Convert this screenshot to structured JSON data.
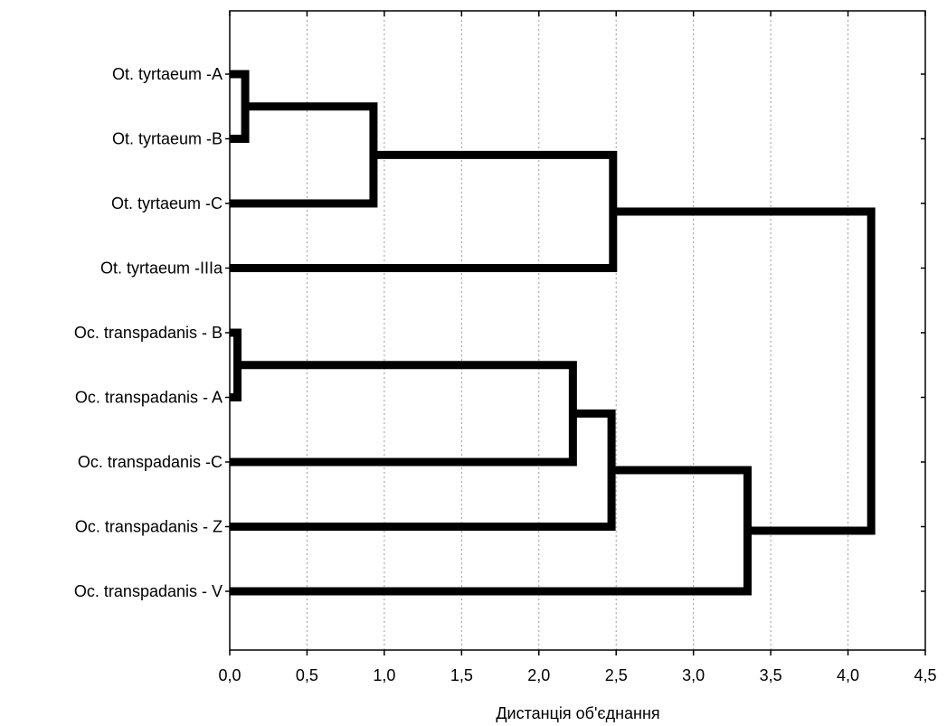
{
  "chart_data": {
    "type": "dendrogram",
    "orientation": "horizontal",
    "leaves": [
      "Ot. tyrtaeum -A",
      "Ot. tyrtaeum -B",
      "Ot. tyrtaeum -C",
      "Ot. tyrtaeum -IIIa",
      "Oc. transpadanis - B",
      "Oc. transpadanis - A",
      "Oc. transpadanis -C",
      "Oc. transpadanis - Z",
      "Oc. transpadanis - V"
    ],
    "merges": [
      {
        "left": "L0",
        "right": "L1",
        "height": 0.1
      },
      {
        "left": "L4",
        "right": "L5",
        "height": 0.05
      },
      {
        "left": "M0",
        "right": "L2",
        "height": 0.93
      },
      {
        "left": "M2",
        "right": "L3",
        "height": 2.48
      },
      {
        "left": "M1",
        "right": "L6",
        "height": 2.22
      },
      {
        "left": "M4",
        "right": "L7",
        "height": 2.47
      },
      {
        "left": "M5",
        "right": "L8",
        "height": 3.35
      },
      {
        "left": "M3",
        "right": "M6",
        "height": 4.15
      }
    ],
    "xlabel": "Дистанція об'єднання",
    "xlim": [
      0,
      4.5
    ],
    "xticks": [
      0,
      0.5,
      1,
      1.5,
      2,
      2.5,
      3,
      3.5,
      4,
      4.5
    ],
    "xtick_labels": [
      "0,0",
      "0,5",
      "1,0",
      "1,5",
      "2,0",
      "2,5",
      "3,0",
      "3,5",
      "4,0",
      "4,5"
    ],
    "grid": "vertical-dotted",
    "colors": {
      "lines": "#000000",
      "grid": "#9a9a9a",
      "background": "#ffffff"
    }
  }
}
